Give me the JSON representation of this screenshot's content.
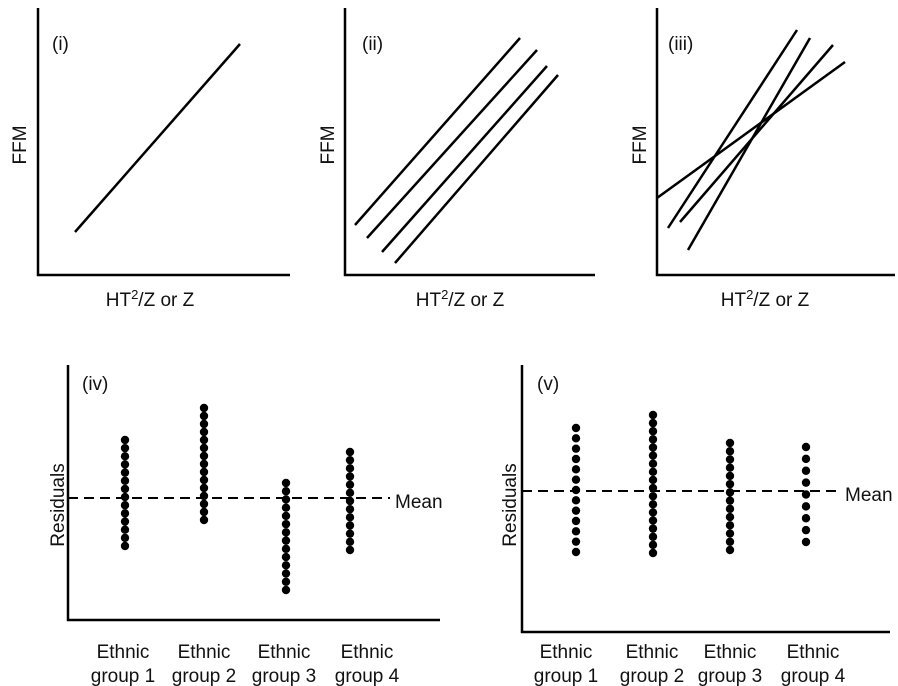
{
  "panels": [
    {
      "label": "(i)",
      "y_label": "FFM",
      "x_label": {
        "base": "HT",
        "sup": "2",
        "rest": "/Z or Z"
      }
    },
    {
      "label": "(ii)",
      "y_label": "FFM",
      "x_label": {
        "base": "HT",
        "sup": "2",
        "rest": "/Z or Z"
      }
    },
    {
      "label": "(iii)",
      "y_label": "FFM",
      "x_label": {
        "base": "HT",
        "sup": "2",
        "rest": "/Z or Z"
      }
    },
    {
      "label": "(iv)",
      "y_label": "Residuals",
      "mean_label": "Mean",
      "groups": [
        [
          "Ethnic",
          "group 1"
        ],
        [
          "Ethnic",
          "group 2"
        ],
        [
          "Ethnic",
          "group 3"
        ],
        [
          "Ethnic",
          "group 4"
        ]
      ]
    },
    {
      "label": "(v)",
      "y_label": "Residuals",
      "mean_label": "Mean",
      "groups": [
        [
          "Ethnic",
          "group 1"
        ],
        [
          "Ethnic",
          "group 2"
        ],
        [
          "Ethnic",
          "group 3"
        ],
        [
          "Ethnic",
          "group 4"
        ]
      ]
    }
  ]
}
